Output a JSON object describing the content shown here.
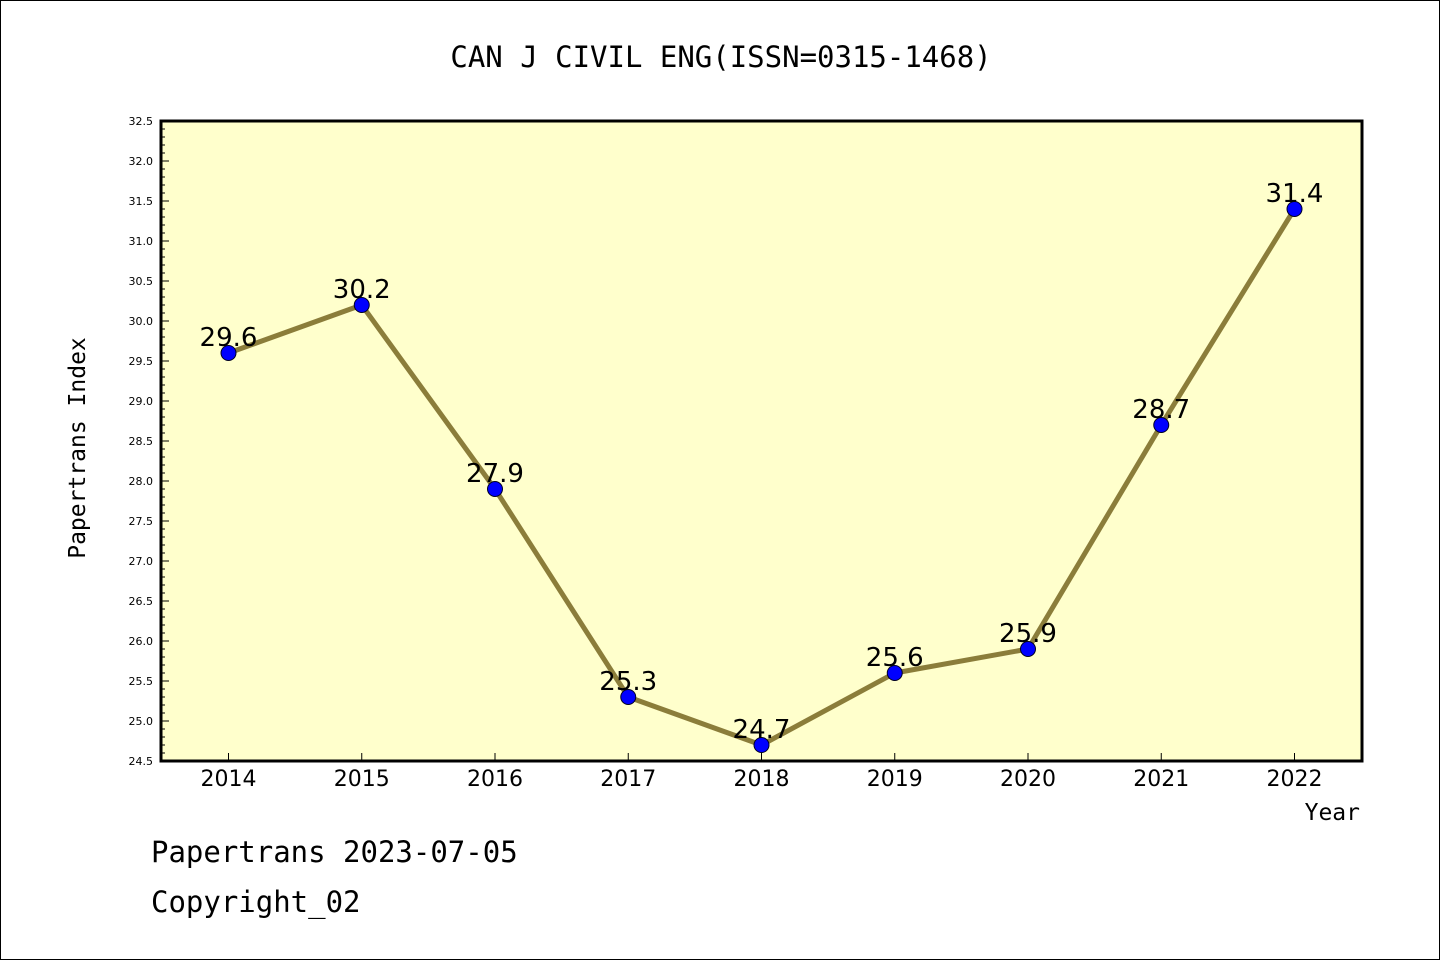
{
  "colors": {
    "plot_background": "#ffffcc",
    "line": "#8b7d3a",
    "marker": "#0000ff",
    "axis": "#000000"
  },
  "chart_data": {
    "type": "line",
    "title": "CAN J CIVIL ENG(ISSN=0315-1468)",
    "xlabel": "Year",
    "ylabel": "Papertrans Index",
    "x": [
      "2014",
      "2015",
      "2016",
      "2017",
      "2018",
      "2019",
      "2020",
      "2021",
      "2022"
    ],
    "series": [
      {
        "values": [
          29.6,
          30.2,
          27.9,
          25.3,
          24.7,
          25.6,
          25.9,
          28.7,
          31.4
        ]
      }
    ],
    "data_labels": [
      "29.6",
      "30.2",
      "27.9",
      "25.3",
      "24.7",
      "25.6",
      "25.9",
      "28.7",
      "31.4"
    ],
    "ylim": [
      24.5,
      32.5
    ],
    "yticks": [
      "24.5",
      "25.0",
      "25.5",
      "26.0",
      "26.5",
      "27.0",
      "27.5",
      "28.0",
      "28.5",
      "29.0",
      "29.5",
      "30.0",
      "30.5",
      "31.0",
      "31.5",
      "32.0",
      "32.5"
    ],
    "grid": false,
    "legend": "none"
  },
  "footer": {
    "line1": "Papertrans 2023-07-05",
    "line2": "Copyright_02"
  }
}
